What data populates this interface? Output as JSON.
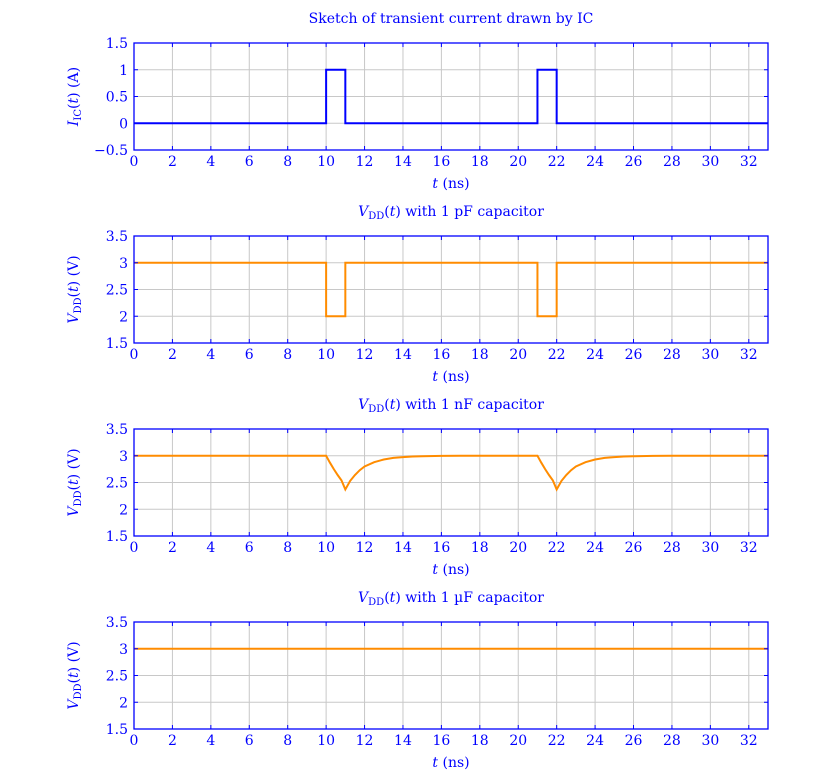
{
  "colors": {
    "axis": "#0000ff",
    "grid": "#c8c8c8",
    "current": "#0000ff",
    "voltage": "#ff8c00"
  },
  "chart_data": [
    {
      "type": "line",
      "title": "Sketch of transient current drawn by IC",
      "xlabel": {
        "var": "t",
        "unit": "(ns)"
      },
      "ylabel": {
        "var": "I",
        "sub": "IC",
        "arg": "(t)",
        "unit": "(A)"
      },
      "xlim": [
        0,
        33
      ],
      "ylim": [
        -0.5,
        1.5
      ],
      "xticks": [
        "0",
        "2",
        "4",
        "6",
        "8",
        "10",
        "12",
        "14",
        "16",
        "18",
        "20",
        "22",
        "24",
        "26",
        "28",
        "30",
        "32"
      ],
      "yticks": [
        "−0.5",
        "0",
        "0.5",
        "1",
        "1.5"
      ],
      "ytick_values": [
        -0.5,
        0,
        0.5,
        1,
        1.5
      ],
      "grid": true,
      "series": [
        {
          "color": "#0000ff",
          "x": [
            0,
            10,
            10,
            11,
            11,
            21,
            21,
            22,
            22,
            33
          ],
          "y": [
            0,
            0,
            1,
            1,
            0,
            0,
            1,
            1,
            0,
            0
          ]
        }
      ]
    },
    {
      "type": "line",
      "title": {
        "var": "V",
        "sub": "DD",
        "arg": "(t)",
        "rest": " with 1 pF capacitor"
      },
      "xlabel": {
        "var": "t",
        "unit": "(ns)"
      },
      "ylabel": {
        "var": "V",
        "sub": "DD",
        "arg": "(t)",
        "unit": "(V)"
      },
      "xlim": [
        0,
        33
      ],
      "ylim": [
        1.5,
        3.5
      ],
      "xticks": [
        "0",
        "2",
        "4",
        "6",
        "8",
        "10",
        "12",
        "14",
        "16",
        "18",
        "20",
        "22",
        "24",
        "26",
        "28",
        "30",
        "32"
      ],
      "yticks": [
        "1.5",
        "2",
        "2.5",
        "3",
        "3.5"
      ],
      "ytick_values": [
        1.5,
        2,
        2.5,
        3,
        3.5
      ],
      "grid": true,
      "series": [
        {
          "color": "#ff8c00",
          "x": [
            0,
            10,
            10,
            11,
            11,
            21,
            21,
            22,
            22,
            33
          ],
          "y": [
            3,
            3,
            2,
            2,
            3,
            3,
            2,
            2,
            3,
            3
          ]
        }
      ]
    },
    {
      "type": "line",
      "title": {
        "var": "V",
        "sub": "DD",
        "arg": "(t)",
        "rest": " with 1 nF capacitor"
      },
      "xlabel": {
        "var": "t",
        "unit": "(ns)"
      },
      "ylabel": {
        "var": "V",
        "sub": "DD",
        "arg": "(t)",
        "unit": "(V)"
      },
      "xlim": [
        0,
        33
      ],
      "ylim": [
        1.5,
        3.5
      ],
      "xticks": [
        "0",
        "2",
        "4",
        "6",
        "8",
        "10",
        "12",
        "14",
        "16",
        "18",
        "20",
        "22",
        "24",
        "26",
        "28",
        "30",
        "32"
      ],
      "yticks": [
        "1.5",
        "2",
        "2.5",
        "3",
        "3.5"
      ],
      "ytick_values": [
        1.5,
        2,
        2.5,
        3,
        3.5
      ],
      "grid": true,
      "series": [
        {
          "color": "#ff8c00",
          "x": [
            0,
            10,
            10.2,
            10.4,
            10.6,
            10.8,
            11,
            11.25,
            11.5,
            11.75,
            12,
            12.5,
            13,
            13.5,
            14,
            14.5,
            15,
            16,
            17,
            18,
            19,
            20,
            21,
            21.2,
            21.4,
            21.6,
            21.8,
            22,
            22.25,
            22.5,
            22.75,
            23,
            23.5,
            24,
            24.5,
            25,
            25.5,
            26,
            27,
            28,
            29,
            30,
            31,
            32,
            33
          ],
          "y": [
            3,
            3,
            2.87,
            2.75,
            2.64,
            2.54,
            2.37,
            2.53,
            2.64,
            2.73,
            2.8,
            2.88,
            2.93,
            2.96,
            2.975,
            2.985,
            2.99,
            2.997,
            3,
            3,
            3,
            3,
            3,
            2.87,
            2.75,
            2.64,
            2.54,
            2.37,
            2.53,
            2.64,
            2.73,
            2.8,
            2.88,
            2.93,
            2.96,
            2.975,
            2.985,
            2.99,
            2.997,
            3,
            3,
            3,
            3,
            3,
            3
          ]
        }
      ]
    },
    {
      "type": "line",
      "title": {
        "var": "V",
        "sub": "DD",
        "arg": "(t)",
        "rest": " with 1 µF capacitor"
      },
      "xlabel": {
        "var": "t",
        "unit": "(ns)"
      },
      "ylabel": {
        "var": "V",
        "sub": "DD",
        "arg": "(t)",
        "unit": "(V)"
      },
      "xlim": [
        0,
        33
      ],
      "ylim": [
        1.5,
        3.5
      ],
      "xticks": [
        "0",
        "2",
        "4",
        "6",
        "8",
        "10",
        "12",
        "14",
        "16",
        "18",
        "20",
        "22",
        "24",
        "26",
        "28",
        "30",
        "32"
      ],
      "yticks": [
        "1.5",
        "2",
        "2.5",
        "3",
        "3.5"
      ],
      "ytick_values": [
        1.5,
        2,
        2.5,
        3,
        3.5
      ],
      "grid": true,
      "series": [
        {
          "color": "#ff8c00",
          "x": [
            0,
            33
          ],
          "y": [
            3,
            3
          ]
        }
      ]
    }
  ]
}
